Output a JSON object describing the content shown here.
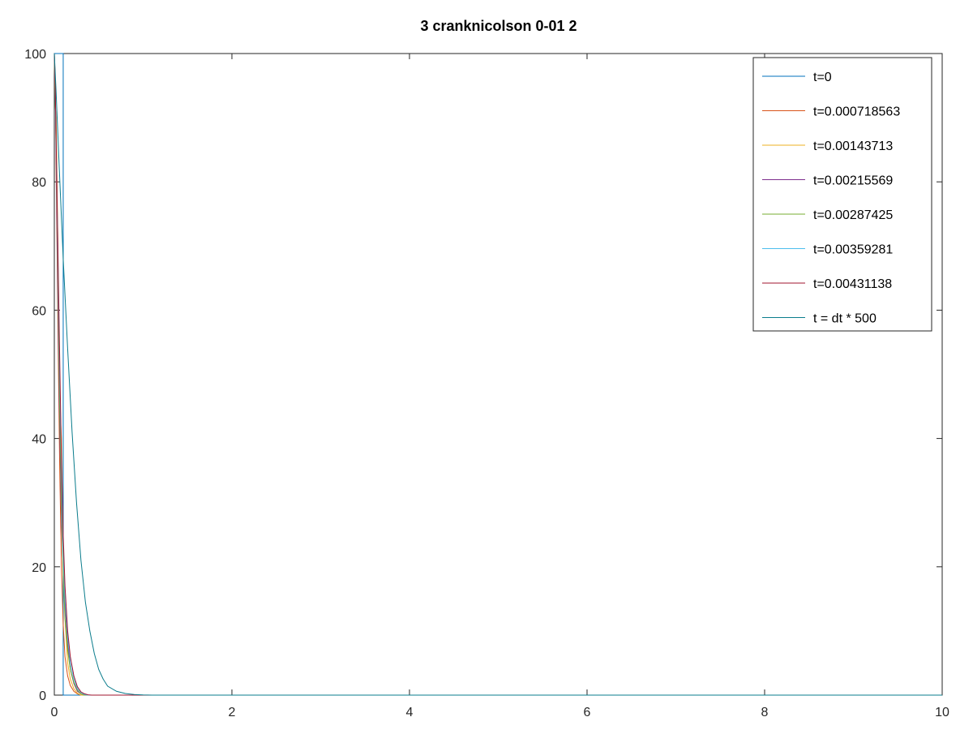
{
  "chart_data": {
    "type": "line",
    "title": "3 cranknicolson 0-01 2",
    "xlabel": "",
    "ylabel": "",
    "xlim": [
      0,
      10
    ],
    "ylim": [
      0,
      100
    ],
    "x_ticks": [
      0,
      2,
      4,
      6,
      8,
      10
    ],
    "y_ticks": [
      0,
      20,
      40,
      60,
      80,
      100
    ],
    "x_tick_labels": [
      "0",
      "2",
      "4",
      "6",
      "8",
      "10"
    ],
    "y_tick_labels": [
      "0",
      "20",
      "40",
      "60",
      "80",
      "100"
    ],
    "grid": false,
    "legend_position": "top-right",
    "series": [
      {
        "name": "t=0",
        "color": "#0072bd",
        "x": [
          0,
          0.1,
          0.1,
          10
        ],
        "y": [
          100,
          100,
          0,
          0
        ]
      },
      {
        "name": "t=0.000718563",
        "color": "#d95319",
        "x": [
          0,
          0.01,
          0.02,
          0.04,
          0.06,
          0.08,
          0.1,
          0.12,
          0.15,
          0.18,
          0.22,
          0.26,
          0.3,
          10
        ],
        "y": [
          100,
          96,
          82,
          58,
          36,
          20,
          11,
          6,
          3,
          1.5,
          0.6,
          0.2,
          0,
          0
        ]
      },
      {
        "name": "t=0.00143713",
        "color": "#edb120",
        "x": [
          0,
          0.01,
          0.02,
          0.04,
          0.06,
          0.08,
          0.1,
          0.12,
          0.15,
          0.18,
          0.22,
          0.26,
          0.3,
          10
        ],
        "y": [
          100,
          92,
          90,
          70,
          46,
          40,
          22,
          12,
          5,
          2.5,
          1,
          0.3,
          0,
          0
        ]
      },
      {
        "name": "t=0.00215569",
        "color": "#7e2f8e",
        "x": [
          0,
          0.01,
          0.02,
          0.04,
          0.06,
          0.08,
          0.1,
          0.12,
          0.15,
          0.18,
          0.22,
          0.26,
          0.3,
          0.34,
          10
        ],
        "y": [
          100,
          95,
          85,
          62,
          42,
          27,
          20,
          14,
          8,
          4,
          1.8,
          0.6,
          0.2,
          0,
          0
        ]
      },
      {
        "name": "t=0.00287425",
        "color": "#77ac30",
        "x": [
          0,
          0.01,
          0.02,
          0.04,
          0.06,
          0.08,
          0.1,
          0.12,
          0.15,
          0.18,
          0.22,
          0.26,
          0.3,
          0.34,
          10
        ],
        "y": [
          100,
          93,
          88,
          66,
          45,
          30,
          19,
          12,
          7,
          4,
          2,
          0.8,
          0.2,
          0,
          0
        ]
      },
      {
        "name": "t=0.00359281",
        "color": "#4dbeee",
        "x": [
          0,
          0.01,
          0.02,
          0.04,
          0.06,
          0.08,
          0.1,
          0.12,
          0.15,
          0.18,
          0.22,
          0.26,
          0.3,
          0.34,
          0.38,
          10
        ],
        "y": [
          100,
          94,
          86,
          68,
          50,
          34,
          22,
          15,
          9,
          5,
          2.5,
          1,
          0.4,
          0.1,
          0,
          0
        ]
      },
      {
        "name": "t=0.00431138",
        "color": "#a2142f",
        "x": [
          0,
          0.01,
          0.02,
          0.04,
          0.06,
          0.08,
          0.1,
          0.12,
          0.15,
          0.18,
          0.22,
          0.26,
          0.3,
          0.34,
          0.38,
          0.42,
          10
        ],
        "y": [
          100,
          95,
          87,
          70,
          53,
          37,
          25,
          17,
          10,
          6,
          3,
          1.3,
          0.5,
          0.2,
          0.05,
          0,
          0
        ]
      },
      {
        "name": "t = dt * 500",
        "color": "#0a7c8c",
        "x": [
          0,
          0.02,
          0.05,
          0.1,
          0.15,
          0.2,
          0.25,
          0.3,
          0.35,
          0.4,
          0.45,
          0.5,
          0.55,
          0.6,
          0.7,
          0.8,
          0.9,
          1.0,
          1.1,
          10
        ],
        "y": [
          100,
          94,
          84,
          68,
          54,
          41,
          30,
          21,
          14.5,
          10,
          6.5,
          4,
          2.5,
          1.4,
          0.6,
          0.25,
          0.1,
          0.03,
          0,
          0
        ]
      }
    ]
  }
}
